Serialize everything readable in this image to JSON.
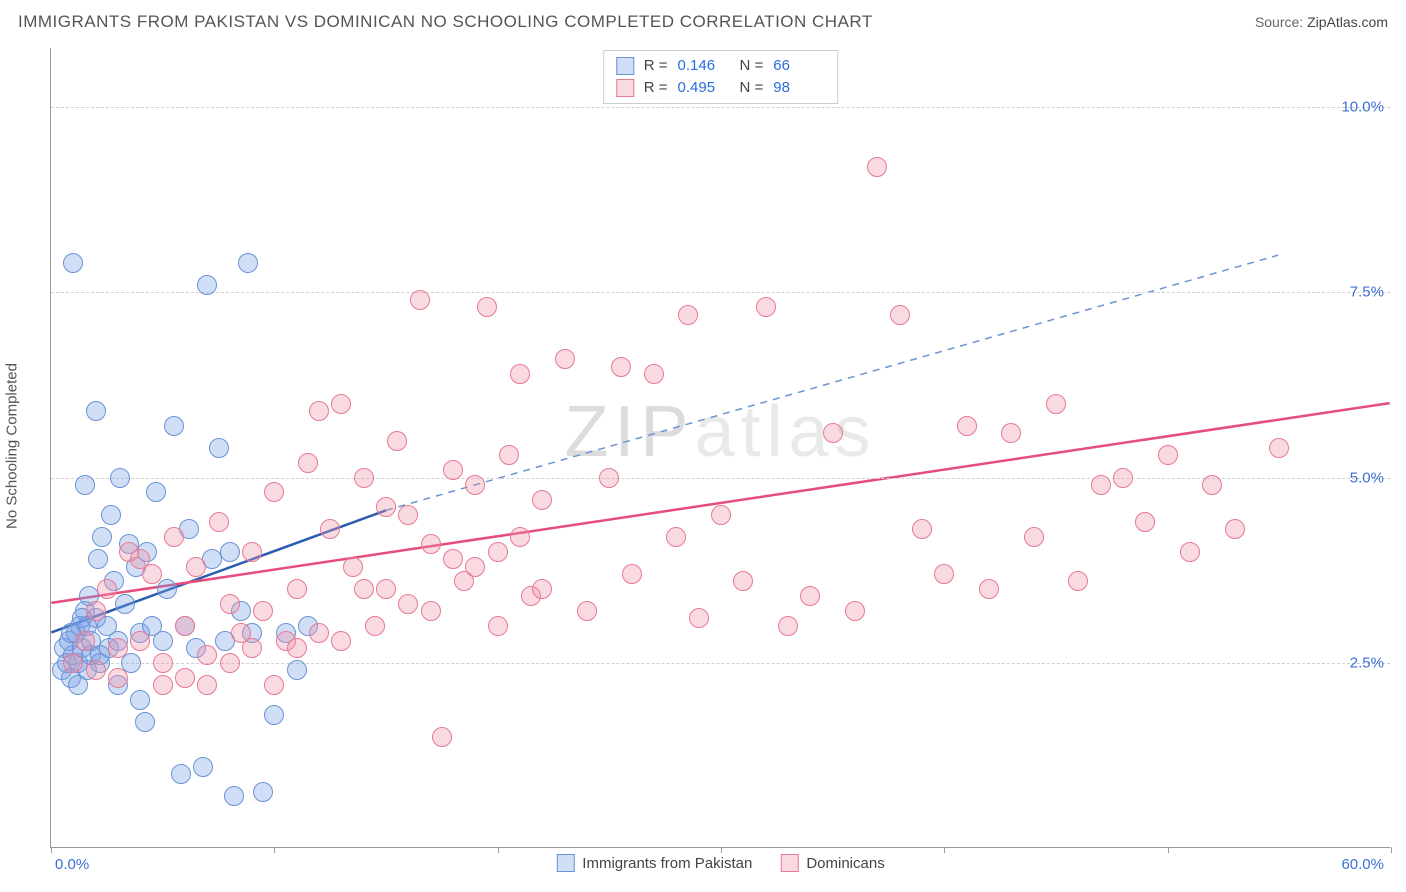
{
  "title": "IMMIGRANTS FROM PAKISTAN VS DOMINICAN NO SCHOOLING COMPLETED CORRELATION CHART",
  "source_label": "Source: ",
  "source_value": "ZipAtlas.com",
  "y_axis_label": "No Schooling Completed",
  "watermark_bold": "ZIP",
  "watermark_light": "atlas",
  "chart": {
    "type": "scatter",
    "xlim": [
      0,
      60
    ],
    "ylim": [
      0,
      10.8
    ],
    "y_ticks": [
      2.5,
      5.0,
      7.5,
      10.0
    ],
    "y_tick_labels": [
      "2.5%",
      "5.0%",
      "7.5%",
      "10.0%"
    ],
    "x_ticks": [
      0,
      10,
      20,
      30,
      40,
      50,
      60
    ],
    "x_min_label": "0.0%",
    "x_max_label": "60.0%",
    "grid_color": "#d0d0d0",
    "background_color": "#ffffff",
    "marker_radius": 10,
    "marker_border_width": 1.5,
    "series": [
      {
        "id": "pakistan",
        "label": "Immigrants from Pakistan",
        "fill": "rgba(120,160,230,0.35)",
        "stroke": "#6b93d6",
        "R": "0.146",
        "N": "66",
        "regression": {
          "x1": 0,
          "y1": 2.9,
          "x2": 15,
          "y2": 4.55,
          "solid": true,
          "color": "#2a5db0",
          "width": 2.5
        },
        "extrapolation": {
          "x1": 15,
          "y1": 4.55,
          "x2": 55,
          "y2": 8.0,
          "color": "#6b93d6",
          "width": 1.5
        },
        "points": [
          [
            0.5,
            2.4
          ],
          [
            0.6,
            2.7
          ],
          [
            0.7,
            2.5
          ],
          [
            0.8,
            2.8
          ],
          [
            0.9,
            2.3
          ],
          [
            1.0,
            2.6
          ],
          [
            1.1,
            2.9
          ],
          [
            1.2,
            2.5
          ],
          [
            1.3,
            3.0
          ],
          [
            1.4,
            2.7
          ],
          [
            1.5,
            3.2
          ],
          [
            1.6,
            2.4
          ],
          [
            1.7,
            3.4
          ],
          [
            1.8,
            2.6
          ],
          [
            2.0,
            3.1
          ],
          [
            2.1,
            3.9
          ],
          [
            2.2,
            2.5
          ],
          [
            2.3,
            4.2
          ],
          [
            2.5,
            3.0
          ],
          [
            2.6,
            2.7
          ],
          [
            2.7,
            4.5
          ],
          [
            2.8,
            3.6
          ],
          [
            3.0,
            2.8
          ],
          [
            3.1,
            5.0
          ],
          [
            3.3,
            3.3
          ],
          [
            3.5,
            4.1
          ],
          [
            3.6,
            2.5
          ],
          [
            3.8,
            3.8
          ],
          [
            4.0,
            2.9
          ],
          [
            4.2,
            1.7
          ],
          [
            4.3,
            4.0
          ],
          [
            4.5,
            3.0
          ],
          [
            4.7,
            4.8
          ],
          [
            5.0,
            2.8
          ],
          [
            5.2,
            3.5
          ],
          [
            5.5,
            5.7
          ],
          [
            5.8,
            1.0
          ],
          [
            6.0,
            3.0
          ],
          [
            6.2,
            4.3
          ],
          [
            6.5,
            2.7
          ],
          [
            6.8,
            1.1
          ],
          [
            7.0,
            7.6
          ],
          [
            7.2,
            3.9
          ],
          [
            7.5,
            5.4
          ],
          [
            7.8,
            2.8
          ],
          [
            8.0,
            4.0
          ],
          [
            8.2,
            0.7
          ],
          [
            8.5,
            3.2
          ],
          [
            8.8,
            7.9
          ],
          [
            9.0,
            2.9
          ],
          [
            9.5,
            0.75
          ],
          [
            10.0,
            1.8
          ],
          [
            10.5,
            2.9
          ],
          [
            11.0,
            2.4
          ],
          [
            11.5,
            3.0
          ],
          [
            1.0,
            7.9
          ],
          [
            2.0,
            5.9
          ],
          [
            1.5,
            4.9
          ],
          [
            3.0,
            2.2
          ],
          [
            4.0,
            2.0
          ],
          [
            1.2,
            2.2
          ],
          [
            1.8,
            2.8
          ],
          [
            0.9,
            2.9
          ],
          [
            1.4,
            3.1
          ],
          [
            2.2,
            2.6
          ],
          [
            1.6,
            3.0
          ]
        ]
      },
      {
        "id": "dominican",
        "label": "Dominicans",
        "fill": "rgba(240,150,170,0.35)",
        "stroke": "#e77a95",
        "R": "0.495",
        "N": "98",
        "regression": {
          "x1": 0,
          "y1": 3.3,
          "x2": 60,
          "y2": 6.0,
          "solid": true,
          "color": "#e54d7a",
          "width": 2.5
        },
        "points": [
          [
            1.0,
            2.5
          ],
          [
            1.5,
            2.8
          ],
          [
            2.0,
            2.4
          ],
          [
            2.5,
            3.5
          ],
          [
            3.0,
            2.7
          ],
          [
            3.5,
            4.0
          ],
          [
            4.0,
            2.8
          ],
          [
            4.5,
            3.7
          ],
          [
            5.0,
            2.5
          ],
          [
            5.5,
            4.2
          ],
          [
            6.0,
            3.0
          ],
          [
            6.5,
            3.8
          ],
          [
            7.0,
            2.6
          ],
          [
            7.5,
            4.4
          ],
          [
            8.0,
            3.3
          ],
          [
            8.5,
            2.9
          ],
          [
            9.0,
            4.0
          ],
          [
            9.5,
            3.2
          ],
          [
            10.0,
            4.8
          ],
          [
            10.5,
            2.8
          ],
          [
            11.0,
            3.5
          ],
          [
            11.5,
            5.2
          ],
          [
            12.0,
            2.9
          ],
          [
            12.5,
            4.3
          ],
          [
            13.0,
            6.0
          ],
          [
            13.5,
            3.8
          ],
          [
            14.0,
            5.0
          ],
          [
            14.5,
            3.0
          ],
          [
            15.0,
            4.6
          ],
          [
            15.5,
            5.5
          ],
          [
            16.0,
            3.3
          ],
          [
            16.5,
            7.4
          ],
          [
            17.0,
            4.1
          ],
          [
            17.5,
            1.5
          ],
          [
            18.0,
            5.1
          ],
          [
            18.5,
            3.6
          ],
          [
            19.0,
            4.9
          ],
          [
            19.5,
            7.3
          ],
          [
            20.0,
            3.0
          ],
          [
            20.5,
            5.3
          ],
          [
            21.0,
            6.4
          ],
          [
            21.5,
            3.4
          ],
          [
            22.0,
            4.7
          ],
          [
            23.0,
            6.6
          ],
          [
            24.0,
            3.2
          ],
          [
            25.0,
            5.0
          ],
          [
            25.5,
            6.5
          ],
          [
            26.0,
            3.7
          ],
          [
            27.0,
            6.4
          ],
          [
            28.0,
            4.2
          ],
          [
            28.5,
            7.2
          ],
          [
            29.0,
            3.1
          ],
          [
            30.0,
            4.5
          ],
          [
            31.0,
            3.6
          ],
          [
            32.0,
            7.3
          ],
          [
            33.0,
            3.0
          ],
          [
            34.0,
            3.4
          ],
          [
            35.0,
            5.6
          ],
          [
            36.0,
            3.2
          ],
          [
            37.0,
            9.2
          ],
          [
            38.0,
            7.2
          ],
          [
            39.0,
            4.3
          ],
          [
            40.0,
            3.7
          ],
          [
            41.0,
            5.7
          ],
          [
            42.0,
            3.5
          ],
          [
            43.0,
            5.6
          ],
          [
            44.0,
            4.2
          ],
          [
            45.0,
            6.0
          ],
          [
            46.0,
            3.6
          ],
          [
            47.0,
            4.9
          ],
          [
            48.0,
            5.0
          ],
          [
            49.0,
            4.4
          ],
          [
            50.0,
            5.3
          ],
          [
            51.0,
            4.0
          ],
          [
            52.0,
            4.9
          ],
          [
            53.0,
            4.3
          ],
          [
            55.0,
            5.4
          ],
          [
            12.0,
            5.9
          ],
          [
            6.0,
            2.3
          ],
          [
            7.0,
            2.2
          ],
          [
            3.0,
            2.3
          ],
          [
            4.0,
            3.9
          ],
          [
            2.0,
            3.2
          ],
          [
            5.0,
            2.2
          ],
          [
            8.0,
            2.5
          ],
          [
            9.0,
            2.7
          ],
          [
            10.0,
            2.2
          ],
          [
            11.0,
            2.7
          ],
          [
            13.0,
            2.8
          ],
          [
            14.0,
            3.5
          ],
          [
            16.0,
            4.5
          ],
          [
            18.0,
            3.9
          ],
          [
            20.0,
            4.0
          ],
          [
            22.0,
            3.5
          ],
          [
            15.0,
            3.5
          ],
          [
            17.0,
            3.2
          ],
          [
            19.0,
            3.8
          ],
          [
            21.0,
            4.2
          ]
        ]
      }
    ],
    "legend_top": {
      "R_label": "R  =",
      "N_label": "N  ="
    }
  }
}
